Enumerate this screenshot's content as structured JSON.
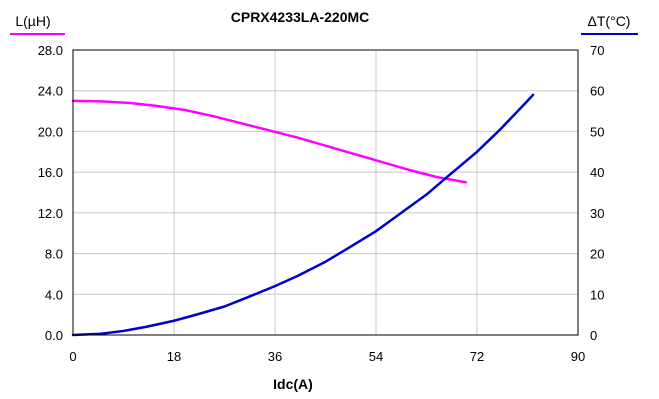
{
  "chart_data": {
    "type": "line",
    "title": "CPRX4233LA-220MC",
    "xlabel": "Idc(A)",
    "ylabel_left": "L(µH)",
    "ylabel_right": "ΔT(°C)",
    "xlim": [
      0,
      90
    ],
    "ylim_left": [
      0,
      28
    ],
    "ylim_right": [
      0,
      70
    ],
    "x_ticks": [
      "0",
      "18",
      "36",
      "54",
      "72",
      "90"
    ],
    "y_left_ticks": [
      "0.0",
      "4.0",
      "8.0",
      "12.0",
      "16.0",
      "20.0",
      "24.0",
      "28.0"
    ],
    "y_right_ticks": [
      "0",
      "10",
      "20",
      "30",
      "40",
      "50",
      "60",
      "70"
    ],
    "grid": true,
    "series": [
      {
        "axis": "left",
        "color": "#ff00ff",
        "x": [
          0,
          5,
          10,
          15,
          20,
          25,
          30,
          35,
          40,
          45,
          50,
          55,
          60,
          65,
          70
        ],
        "y": [
          23.0,
          22.95,
          22.8,
          22.5,
          22.1,
          21.5,
          20.8,
          20.1,
          19.4,
          18.6,
          17.8,
          17.0,
          16.2,
          15.5,
          15.0
        ]
      },
      {
        "axis": "right",
        "color": "#0000cc",
        "x": [
          0,
          5,
          9,
          13,
          18,
          22,
          27,
          31,
          36,
          40,
          45,
          49,
          54,
          58,
          63,
          67,
          72,
          76,
          81,
          82
        ],
        "y": [
          0,
          0.3,
          1.0,
          2.0,
          3.5,
          5.0,
          7.0,
          9.2,
          12.0,
          14.5,
          18.0,
          21.3,
          25.5,
          29.5,
          34.5,
          39.2,
          45.0,
          50.3,
          57.5,
          59.0
        ]
      }
    ]
  }
}
